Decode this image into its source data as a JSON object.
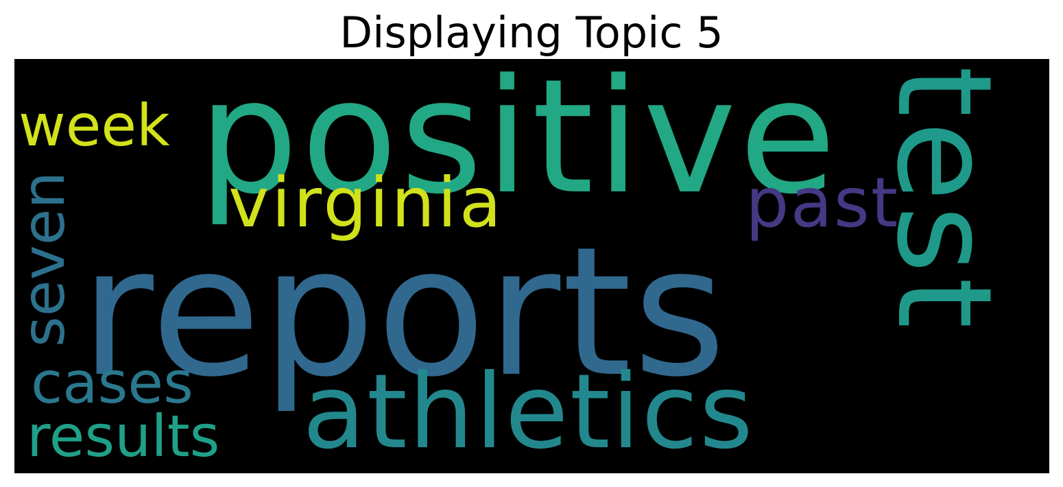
{
  "title": "Displaying Topic 5",
  "wordcloud": {
    "background": "#000000",
    "words": [
      {
        "text": "positive",
        "color": "#22a884"
      },
      {
        "text": "reports",
        "color": "#31688e"
      },
      {
        "text": "test",
        "color": "#1f9a8a"
      },
      {
        "text": "athletics",
        "color": "#23888e"
      },
      {
        "text": "virginia",
        "color": "#d1e11c"
      },
      {
        "text": "week",
        "color": "#d2e21b"
      },
      {
        "text": "past",
        "color": "#443983"
      },
      {
        "text": "seven",
        "color": "#2c718e"
      },
      {
        "text": "cases",
        "color": "#2a788e"
      },
      {
        "text": "results",
        "color": "#1fa088"
      }
    ]
  }
}
